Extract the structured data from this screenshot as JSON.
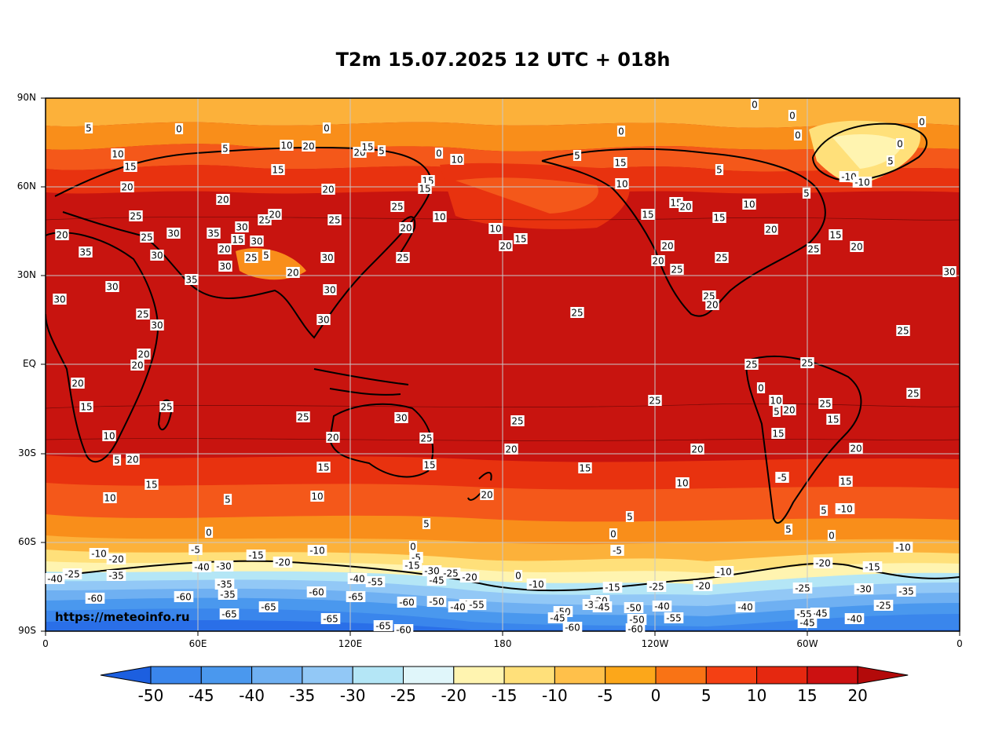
{
  "title": "T2m 15.07.2025 12 UTC + 018h",
  "watermark": "https://meteoinfo.ru",
  "lat_labels": [
    "90N",
    "60N",
    "30N",
    "EQ",
    "30S",
    "60S",
    "90S"
  ],
  "lon_labels": [
    "0",
    "60E",
    "120E",
    "180",
    "120W",
    "60W",
    "0"
  ],
  "colorbar": {
    "labels": [
      "-50",
      "-45",
      "-40",
      "-35",
      "-30",
      "-25",
      "-20",
      "-15",
      "-10",
      "-5",
      "0",
      "5",
      "10",
      "15",
      "20"
    ],
    "colors": [
      "#2a6fe8",
      "#3a86ec",
      "#4a98ee",
      "#6fb0f2",
      "#92c8f6",
      "#b4e6f6",
      "#e0f6fa",
      "#fff4b0",
      "#ffe07a",
      "#ffc04a",
      "#fca71a",
      "#f97315",
      "#f44013",
      "#e52810",
      "#cc1111"
    ],
    "under_color": "#1c5fe0",
    "over_color": "#b30a0a"
  },
  "isotherm_labels": [
    "0",
    "5",
    "10",
    "15",
    "20",
    "25",
    "30",
    "35",
    "-5",
    "-10",
    "-15",
    "-20",
    "-25",
    "-30",
    "-35",
    "-40",
    "-45",
    "-50",
    "-55",
    "-60",
    "-65"
  ],
  "colors": {
    "background": "#ffffff",
    "grid": "#c8c8c8",
    "coast": "#000000"
  }
}
